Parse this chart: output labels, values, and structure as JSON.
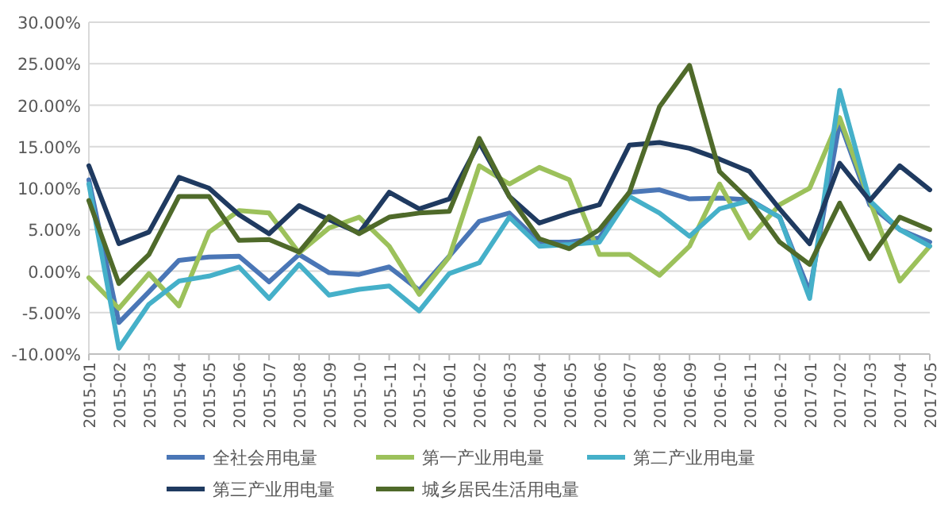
{
  "chart_data": {
    "type": "line",
    "categories": [
      "2015-01",
      "2015-02",
      "2015-03",
      "2015-04",
      "2015-05",
      "2015-06",
      "2015-07",
      "2015-08",
      "2015-09",
      "2015-10",
      "2015-11",
      "2015-12",
      "2016-01",
      "2016-02",
      "2016-03",
      "2016-04",
      "2016-05",
      "2016-06",
      "2016-07",
      "2016-08",
      "2016-09",
      "2016-10",
      "2016-11",
      "2016-12",
      "2017-01",
      "2017-02",
      "2017-03",
      "2017-04",
      "2017-05"
    ],
    "series": [
      {
        "name": "全社会用电量",
        "color": "#4a76b6",
        "values": [
          11,
          -6.2,
          -2.5,
          1.3,
          1.7,
          1.8,
          -1.3,
          2.0,
          -0.2,
          -0.4,
          0.5,
          -2.3,
          1.8,
          6.0,
          7.0,
          3.5,
          3.5,
          4.0,
          9.5,
          9.8,
          8.7,
          8.8,
          8.6,
          6.5,
          -2.5,
          18.0,
          8.0,
          5.0,
          3.5
        ]
      },
      {
        "name": "第一产业用电量",
        "color": "#9cc15b",
        "values": [
          -0.8,
          -4.5,
          -0.3,
          -4.2,
          4.7,
          7.3,
          7.0,
          2.2,
          5.2,
          6.5,
          3.0,
          -2.8,
          1.7,
          12.7,
          10.5,
          12.5,
          11.0,
          2.0,
          2.0,
          -0.5,
          3.0,
          10.5,
          4.0,
          8.0,
          10.0,
          18.5,
          8.5,
          -1.2,
          3.0
        ]
      },
      {
        "name": "第二产业用电量",
        "color": "#45b0c9",
        "values": [
          10.5,
          -9.3,
          -4.0,
          -1.2,
          -0.6,
          0.5,
          -3.3,
          0.8,
          -2.9,
          -2.2,
          -1.8,
          -4.8,
          -0.3,
          1.0,
          6.5,
          3.0,
          3.2,
          3.5,
          9.0,
          7.0,
          4.2,
          7.5,
          8.5,
          6.5,
          -3.3,
          21.8,
          8.5,
          5.0,
          3.0
        ]
      },
      {
        "name": "第三产业用电量",
        "color": "#1f3a60",
        "values": [
          12.7,
          3.3,
          4.7,
          11.3,
          10.0,
          6.8,
          4.5,
          7.9,
          6.2,
          4.6,
          9.5,
          7.5,
          8.7,
          15.5,
          9.0,
          5.8,
          7.0,
          8.0,
          15.2,
          15.5,
          14.8,
          13.5,
          12.0,
          7.5,
          3.3,
          13.0,
          8.5,
          12.7,
          9.8
        ]
      },
      {
        "name": "城乡居民生活用电量",
        "color": "#4f6a2a",
        "values": [
          8.5,
          -1.5,
          2.0,
          9.0,
          9.0,
          3.7,
          3.8,
          2.3,
          6.6,
          4.5,
          6.5,
          7.0,
          7.2,
          16.0,
          9.0,
          3.9,
          2.7,
          5.0,
          9.5,
          19.8,
          24.8,
          12.0,
          8.5,
          3.5,
          0.8,
          8.2,
          1.5,
          6.5,
          5.0
        ]
      }
    ],
    "ylim": [
      -10,
      30
    ],
    "yticks": [
      {
        "value": -10,
        "label": "-10.00%"
      },
      {
        "value": -5,
        "label": "-5.00%"
      },
      {
        "value": 0,
        "label": "0.00%"
      },
      {
        "value": 5,
        "label": "5.00%"
      },
      {
        "value": 10,
        "label": "10.00%"
      },
      {
        "value": 15,
        "label": "15.00%"
      },
      {
        "value": 20,
        "label": "20.00%"
      },
      {
        "value": 25,
        "label": "25.00%"
      },
      {
        "value": 30,
        "label": "30.00%"
      }
    ],
    "grid": "y",
    "legend": "bottom",
    "marker": "none",
    "line_style": "solid"
  }
}
